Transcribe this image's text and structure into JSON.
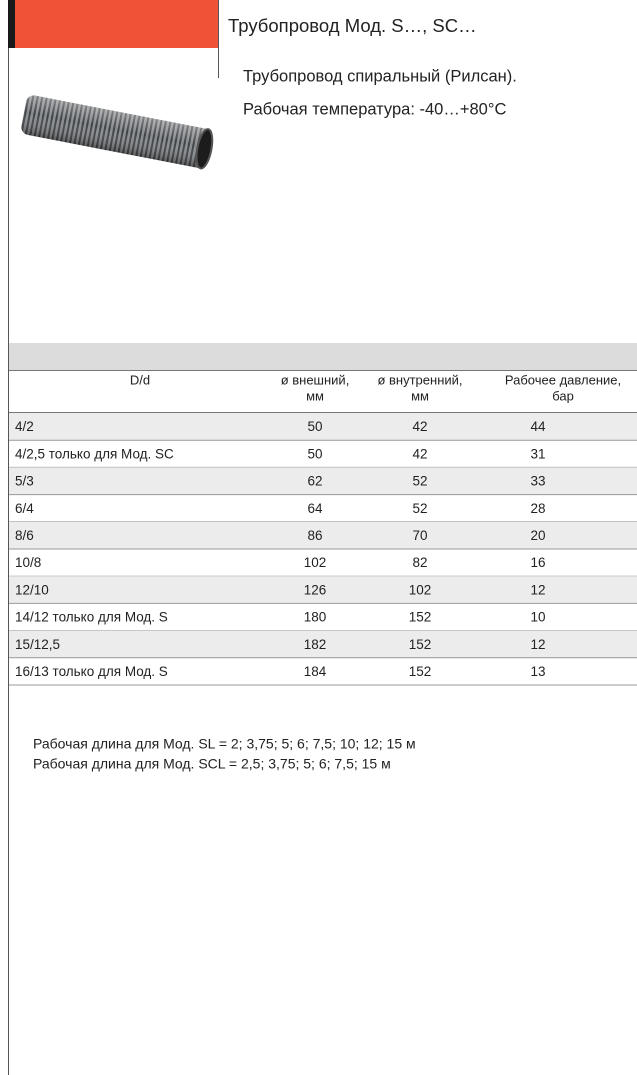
{
  "header": {
    "title": "Трубопровод Мод. S…, SC…",
    "description": [
      "Трубопровод спиральный (Рилсан).",
      "Рабочая температура: -40…+80°C"
    ]
  },
  "table": {
    "headers": [
      [
        "D/d"
      ],
      [
        "ø внешний,",
        "мм"
      ],
      [
        "ø внутренний,",
        "мм"
      ],
      [
        "Рабочее давление,",
        "бар"
      ]
    ],
    "rows": [
      [
        "4/2",
        50,
        42,
        44
      ],
      [
        "4/2,5 только для Мод. SC",
        50,
        42,
        31
      ],
      [
        "5/3",
        62,
        52,
        33
      ],
      [
        "6/4",
        64,
        52,
        28
      ],
      [
        "8/6",
        86,
        70,
        20
      ],
      [
        "10/8",
        102,
        82,
        16
      ],
      [
        "12/10",
        126,
        102,
        12
      ],
      [
        "14/12 только для Мод. S",
        180,
        152,
        10
      ],
      [
        "15/12,5",
        182,
        152,
        12
      ],
      [
        "16/13 только для Мод. S",
        184,
        152,
        13
      ]
    ]
  },
  "notes": [
    "Рабочая длина для Мод. SL = 2; 3,75; 5; 6; 7,5; 10; 12; 15 м",
    "Рабочая длина для Мод. SCL = 2,5; 3,75; 5; 6; 7,5; 15 м"
  ]
}
